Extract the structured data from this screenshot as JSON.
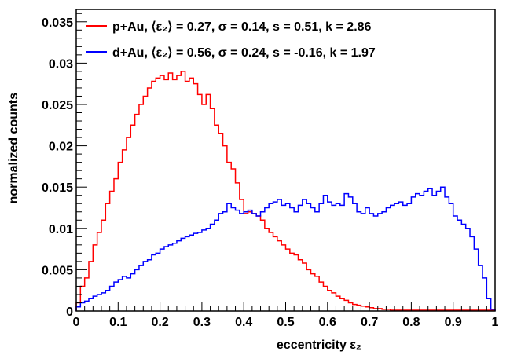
{
  "chart_data": {
    "type": "line",
    "xlabel": "eccentricity ε₂",
    "ylabel": "normalized counts",
    "xlim": [
      0,
      1
    ],
    "ylim": [
      0,
      0.0365
    ],
    "x_ticks": [
      0,
      0.1,
      0.2,
      0.3,
      0.4,
      0.5,
      0.6,
      0.7,
      0.8,
      0.9,
      1
    ],
    "x_tick_labels": [
      "0",
      "0.1",
      "0.2",
      "0.3",
      "0.4",
      "0.5",
      "0.6",
      "0.7",
      "0.8",
      "0.9",
      "1"
    ],
    "y_ticks": [
      0,
      0.005,
      0.01,
      0.015,
      0.02,
      0.025,
      0.03,
      0.035
    ],
    "y_tick_labels": [
      "0",
      "0.005",
      "0.01",
      "0.015",
      "0.02",
      "0.025",
      "0.03",
      "0.035"
    ],
    "bin_width": 0.01,
    "legend_position": "top-left",
    "grid": false,
    "series": [
      {
        "name": "p+Au, ⟨ε₂⟩ = 0.27, σ = 0.14, s = 0.51, k = 2.86",
        "color": "#ff0000",
        "values": [
          0.001,
          0.003,
          0.004,
          0.006,
          0.008,
          0.0095,
          0.011,
          0.013,
          0.0145,
          0.016,
          0.018,
          0.0195,
          0.021,
          0.0225,
          0.0238,
          0.025,
          0.026,
          0.027,
          0.0278,
          0.0282,
          0.0285,
          0.028,
          0.0288,
          0.028,
          0.0285,
          0.029,
          0.0278,
          0.0282,
          0.0275,
          0.0262,
          0.025,
          0.0262,
          0.0245,
          0.0225,
          0.0215,
          0.02,
          0.018,
          0.0172,
          0.0155,
          0.0135,
          0.0118,
          0.012,
          0.0118,
          0.0115,
          0.011,
          0.01,
          0.0095,
          0.009,
          0.0085,
          0.008,
          0.0075,
          0.007,
          0.0068,
          0.0062,
          0.0058,
          0.005,
          0.0045,
          0.0042,
          0.0035,
          0.003,
          0.0025,
          0.0022,
          0.0018,
          0.0015,
          0.0013,
          0.001,
          0.0008,
          0.0007,
          0.0006,
          0.0005,
          0.0004,
          0.0003,
          0.0003,
          0.0002,
          0.0002,
          0.0001,
          0.0001,
          0.0001,
          0.0001,
          0.0001,
          0.0001,
          0.0001,
          0.0001,
          0.0001,
          0.0001,
          0.0001,
          0.0001,
          0.0001,
          0.0001,
          0.0001,
          0.0001,
          0.0001,
          0.0001,
          0.0001,
          0.0001,
          0.0001,
          0.0001,
          0.0001,
          0.0001,
          0.0001
        ]
      },
      {
        "name": "d+Au, ⟨ε₂⟩ = 0.56, σ = 0.24, s = -0.16, k = 1.97",
        "color": "#0000ff",
        "values": [
          0.0005,
          0.001,
          0.0012,
          0.0015,
          0.0018,
          0.002,
          0.0022,
          0.0025,
          0.003,
          0.0035,
          0.0038,
          0.0042,
          0.004,
          0.0045,
          0.005,
          0.0055,
          0.006,
          0.0062,
          0.0068,
          0.007,
          0.0075,
          0.0078,
          0.008,
          0.0082,
          0.0085,
          0.0088,
          0.009,
          0.0092,
          0.0094,
          0.0095,
          0.0098,
          0.01,
          0.0105,
          0.011,
          0.0118,
          0.012,
          0.013,
          0.0125,
          0.0122,
          0.0118,
          0.012,
          0.0122,
          0.0118,
          0.0115,
          0.012,
          0.0125,
          0.013,
          0.0132,
          0.0135,
          0.0128,
          0.013,
          0.0125,
          0.012,
          0.0128,
          0.0135,
          0.013,
          0.0125,
          0.012,
          0.013,
          0.014,
          0.0132,
          0.0128,
          0.013,
          0.0128,
          0.0142,
          0.0138,
          0.013,
          0.012,
          0.0118,
          0.0125,
          0.0118,
          0.0115,
          0.0118,
          0.012,
          0.0125,
          0.0128,
          0.013,
          0.0132,
          0.0128,
          0.013,
          0.0138,
          0.0142,
          0.014,
          0.0145,
          0.0148,
          0.014,
          0.0145,
          0.015,
          0.0138,
          0.013,
          0.0115,
          0.011,
          0.0105,
          0.01,
          0.009,
          0.0075,
          0.0055,
          0.004,
          0.0015,
          0.0002
        ]
      }
    ]
  }
}
